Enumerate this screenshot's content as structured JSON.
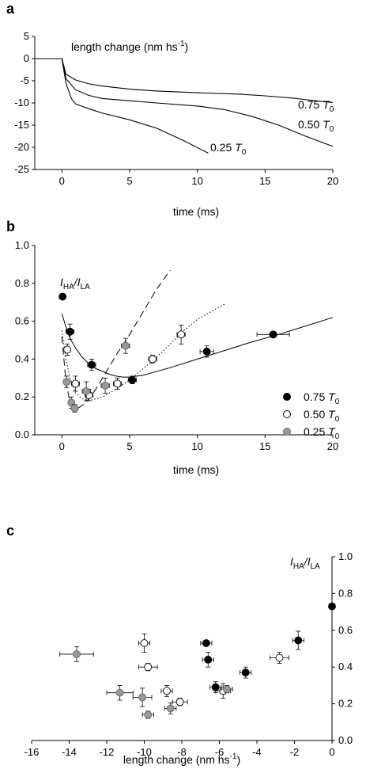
{
  "chart_data": [
    {
      "panel": "a",
      "type": "line",
      "xlabel": "time (ms)",
      "annotation": "length change (nm hs",
      "annotation_sup": "-1",
      "annotation_close": ")",
      "xlim": [
        -2,
        20
      ],
      "ylim": [
        -25,
        5
      ],
      "xticks": [
        0,
        5,
        10,
        15,
        20
      ],
      "yticks": [
        5,
        0,
        -5,
        -10,
        -15,
        -20,
        -25
      ],
      "series": [
        {
          "label_num": "0.75",
          "label_T": "T",
          "label_sub": "0",
          "x": [
            -2,
            0,
            0.3,
            1,
            2,
            3,
            5,
            7,
            10,
            13,
            15,
            17,
            19,
            20
          ],
          "y": [
            0,
            0,
            -3.5,
            -4.8,
            -5.7,
            -6.2,
            -6.9,
            -7.3,
            -7.7,
            -8.0,
            -8.4,
            -8.9,
            -9.6,
            -9.9
          ]
        },
        {
          "label_num": "0.50",
          "label_T": "T",
          "label_sub": "0",
          "x": [
            0,
            0.3,
            1,
            2,
            3,
            5,
            7,
            10,
            12,
            14,
            16,
            18,
            20
          ],
          "y": [
            0,
            -4.5,
            -7.0,
            -8.3,
            -9.0,
            -9.5,
            -10.0,
            -10.7,
            -11.5,
            -13.0,
            -15.0,
            -17.5,
            -19.8
          ]
        },
        {
          "label_num": "0.25",
          "label_T": "T",
          "label_sub": "0",
          "x": [
            0,
            0.3,
            0.7,
            1,
            2,
            3,
            5,
            7,
            9,
            10.8
          ],
          "y": [
            0,
            -5.5,
            -9.0,
            -10.2,
            -11.3,
            -12.3,
            -13.8,
            -15.7,
            -18.5,
            -21.3
          ]
        }
      ]
    },
    {
      "panel": "b",
      "type": "scatter",
      "xlabel": "time (ms)",
      "ylabel_I1": "I",
      "ylabel_sub1": "HA",
      "ylabel_slash": "/",
      "ylabel_I2": "I",
      "ylabel_sub2": "LA",
      "xlim": [
        -2,
        20
      ],
      "ylim": [
        0,
        1.0
      ],
      "xticks": [
        0,
        5,
        10,
        15,
        20
      ],
      "yticks": [
        "0.0",
        "0.2",
        "0.4",
        "0.6",
        "0.8",
        "1.0"
      ],
      "legend": [
        {
          "num": "0.75",
          "T": "T",
          "sub": "0",
          "color": "#000000"
        },
        {
          "num": "0.50",
          "T": "T",
          "sub": "0",
          "color": "#ffffff"
        },
        {
          "num": "0.25",
          "T": "T",
          "sub": "0",
          "color": "#999999"
        }
      ],
      "series": [
        {
          "name": "0.75 T0",
          "color": "#000000",
          "points": [
            [
              0.05,
              0.73,
              0,
              0
            ],
            [
              0.6,
              0.545,
              0.3,
              0.04
            ],
            [
              2.2,
              0.37,
              0.3,
              0.03
            ],
            [
              5.2,
              0.29,
              0.3,
              0.02
            ],
            [
              10.7,
              0.44,
              0.5,
              0.03
            ],
            [
              15.6,
              0.53,
              1.2,
              0.01
            ]
          ]
        },
        {
          "name": "0.50 T0",
          "color": "#ffffff",
          "points": [
            [
              0.4,
              0.45,
              0.2,
              0.03
            ],
            [
              1.0,
              0.27,
              0.3,
              0.04
            ],
            [
              2.0,
              0.21,
              0.3,
              0.03
            ],
            [
              4.1,
              0.27,
              0.3,
              0.03
            ],
            [
              6.7,
              0.4,
              0.3,
              0.02
            ],
            [
              8.8,
              0.53,
              0.3,
              0.05
            ]
          ]
        },
        {
          "name": "0.25 T0",
          "color": "#999999",
          "points": [
            [
              0.35,
              0.28,
              0.2,
              0.03
            ],
            [
              0.7,
              0.17,
              0.2,
              0.03
            ],
            [
              0.95,
              0.14,
              0.2,
              0.02
            ],
            [
              1.8,
              0.23,
              0.3,
              0.05
            ],
            [
              3.2,
              0.26,
              0.3,
              0.04
            ],
            [
              4.7,
              0.47,
              0.3,
              0.04
            ]
          ]
        }
      ],
      "fits": [
        {
          "style": "solid",
          "x": [
            0,
            0.3,
            0.6,
            1,
            1.5,
            2,
            2.5,
            3,
            3.5,
            4,
            4.5,
            5,
            6,
            8,
            10,
            12,
            14,
            16,
            18,
            20
          ],
          "y": [
            0.64,
            0.57,
            0.51,
            0.46,
            0.41,
            0.375,
            0.35,
            0.335,
            0.32,
            0.31,
            0.305,
            0.305,
            0.315,
            0.355,
            0.4,
            0.445,
            0.49,
            0.53,
            0.575,
            0.62
          ]
        },
        {
          "style": "dotted",
          "x": [
            0,
            0.3,
            0.6,
            1,
            1.5,
            2,
            2.5,
            3,
            4,
            5,
            6,
            7,
            8,
            9,
            10,
            11,
            12
          ],
          "y": [
            0.55,
            0.4,
            0.3,
            0.22,
            0.19,
            0.18,
            0.19,
            0.2,
            0.24,
            0.29,
            0.35,
            0.41,
            0.48,
            0.55,
            0.61,
            0.65,
            0.69
          ]
        },
        {
          "style": "dashed",
          "x": [
            0,
            0.3,
            0.6,
            0.9,
            1.2,
            1.6,
            2,
            2.5,
            3,
            3.5,
            4,
            5,
            6,
            7,
            8
          ],
          "y": [
            0.52,
            0.28,
            0.17,
            0.14,
            0.14,
            0.16,
            0.19,
            0.24,
            0.3,
            0.36,
            0.42,
            0.53,
            0.65,
            0.77,
            0.87
          ]
        }
      ]
    },
    {
      "panel": "c",
      "type": "scatter",
      "xlabel": "length change (nm hs",
      "xlabel_sup": "-1",
      "xlabel_close": ")",
      "ylabel_I1": "I",
      "ylabel_sub1": "HA",
      "ylabel_slash": "/",
      "ylabel_I2": "I",
      "ylabel_sub2": "LA",
      "xlim": [
        -16,
        0
      ],
      "ylim": [
        0,
        1.0
      ],
      "xticks": [
        -16,
        -14,
        -12,
        -10,
        -8,
        -6,
        -4,
        -2,
        0
      ],
      "yticks": [
        "0.0",
        "0.2",
        "0.4",
        "0.6",
        "0.8",
        "1.0"
      ],
      "series": [
        {
          "name": "0.75 T0",
          "color": "#000000",
          "points": [
            [
              0,
              0.73,
              0,
              0
            ],
            [
              -1.8,
              0.545,
              0.3,
              0.05
            ],
            [
              -4.6,
              0.37,
              0.3,
              0.03
            ],
            [
              -6.6,
              0.44,
              0.3,
              0.04
            ],
            [
              -6.7,
              0.53,
              0.3,
              0.01
            ],
            [
              -6.2,
              0.29,
              0.3,
              0.03
            ]
          ]
        },
        {
          "name": "0.50 T0",
          "color": "#ffffff",
          "points": [
            [
              -2.8,
              0.45,
              0.5,
              0.03
            ],
            [
              -5.8,
              0.27,
              0.4,
              0.04
            ],
            [
              -8.1,
              0.21,
              0.4,
              0.02
            ],
            [
              -8.8,
              0.27,
              0.3,
              0.03
            ],
            [
              -9.8,
              0.4,
              0.5,
              0.02
            ],
            [
              -10.0,
              0.53,
              0.3,
              0.05
            ]
          ]
        },
        {
          "name": "0.25 T0",
          "color": "#999999",
          "points": [
            [
              -13.6,
              0.47,
              0.9,
              0.04
            ],
            [
              -11.3,
              0.26,
              0.7,
              0.04
            ],
            [
              -10.1,
              0.235,
              0.5,
              0.05
            ],
            [
              -9.8,
              0.14,
              0.3,
              0.02
            ],
            [
              -8.6,
              0.175,
              0.3,
              0.03
            ],
            [
              -5.6,
              0.28,
              0.3,
              0.02
            ]
          ]
        }
      ]
    }
  ]
}
